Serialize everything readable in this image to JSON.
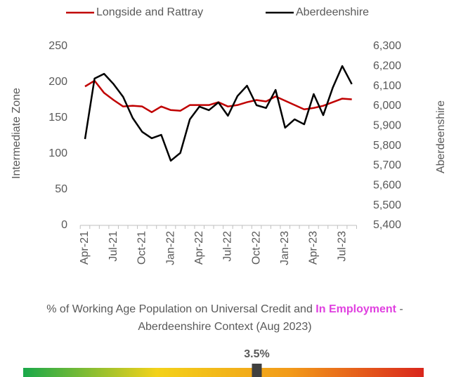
{
  "chart_data": [
    {
      "type": "line",
      "categories": [
        "Apr-21",
        null,
        null,
        "Jul-21",
        null,
        null,
        "Oct-21",
        null,
        null,
        "Jan-22",
        null,
        null,
        "Apr-22",
        null,
        null,
        "Jul-22",
        null,
        null,
        "Oct-22",
        null,
        null,
        "Jan-23",
        null,
        null,
        "Apr-23",
        null,
        null,
        "Jul-23",
        null
      ],
      "y_label": "Intermediate Zone",
      "y2_label": "Aberdeenshire",
      "ylim": [
        0,
        250
      ],
      "yticks": [
        0,
        50,
        100,
        150,
        200,
        250
      ],
      "y2lim": [
        5400,
        6300
      ],
      "y2ticks": [
        {
          "value": 5400,
          "label": "5,400"
        },
        {
          "value": 5500,
          "label": "5,500"
        },
        {
          "value": 5600,
          "label": "5,600"
        },
        {
          "value": 5700,
          "label": "5,700"
        },
        {
          "value": 5800,
          "label": "5,800"
        },
        {
          "value": 5900,
          "label": "5,900"
        },
        {
          "value": 6000,
          "label": "6,000"
        },
        {
          "value": 6100,
          "label": "6,100"
        },
        {
          "value": 6200,
          "label": "6,200"
        },
        {
          "value": 6300,
          "label": "6,300"
        }
      ],
      "series": [
        {
          "name": "Longside and Rattray",
          "color": "#c00000",
          "values": [
            194,
            202,
            185,
            175,
            166,
            167,
            166,
            158,
            166,
            161,
            160,
            168,
            168,
            168,
            172,
            166,
            168,
            172,
            175,
            173,
            180,
            174,
            168,
            162,
            164,
            167,
            172,
            177,
            176
          ]
        },
        {
          "name": "Aberdeenshire",
          "color": "#000000",
          "axis": "y2",
          "values": [
            5834,
            6138,
            6162,
            6110,
            6046,
            5940,
            5870,
            5838,
            5855,
            5725,
            5764,
            5933,
            5997,
            5979,
            6018,
            5951,
            6050,
            6102,
            6004,
            5990,
            6081,
            5891,
            5933,
            5908,
            6060,
            5954,
            6092,
            6201,
            6110
          ]
        }
      ],
      "legend": "top"
    },
    {
      "type": "gauge",
      "title": [
        "% of Working Age Population on Universal Credit and ",
        "In Employment",
        " - Aberdeenshire Context (Aug 2023)"
      ],
      "highlight_color": "#e040e0",
      "values": [
        3.5
      ],
      "value_labels": [
        "3.5%"
      ],
      "xlim": [
        0,
        6
      ],
      "colors": [
        "#1aa84a",
        "#f3d21a",
        "#f29a1a",
        "#d9261c"
      ]
    }
  ]
}
